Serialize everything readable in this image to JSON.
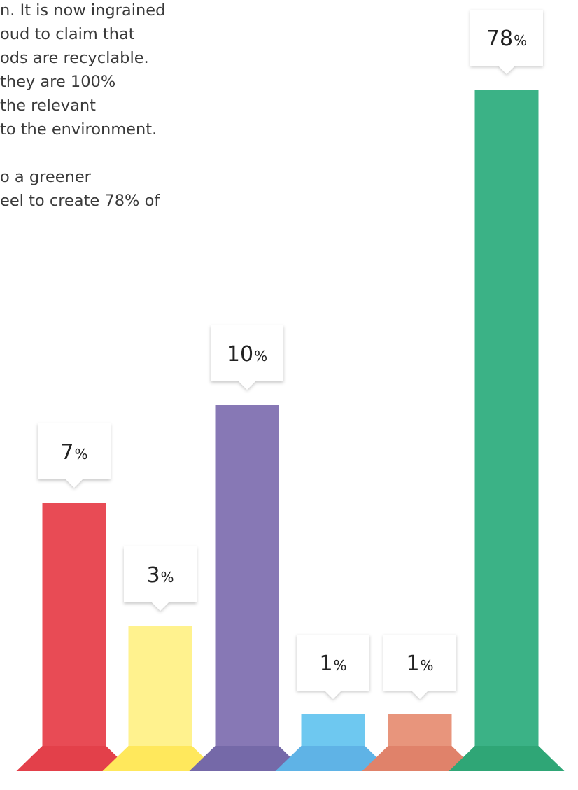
{
  "intro": {
    "lines": [
      "n. It is now ingrained",
      "oud to claim that",
      "ods are recyclable.",
      "they are 100%",
      "the relevant",
      "to the environment.",
      "",
      "o a greener",
      "eel to create 78% of"
    ]
  },
  "chart_data": {
    "type": "bar",
    "values": [
      7,
      3,
      10,
      1,
      1,
      78
    ],
    "labels": [
      "7%",
      "3%",
      "10%",
      "1%",
      "1%",
      "78%"
    ],
    "colors": [
      "#E84B55",
      "#FFF28E",
      "#8778B5",
      "#6EC8F0",
      "#E8957C",
      "#3BB286"
    ],
    "base_colors": [
      "#E3404A",
      "#FFE85C",
      "#7569A8",
      "#5FB3E6",
      "#E0826A",
      "#2FA676"
    ],
    "title": "",
    "xlabel": "",
    "ylabel": "",
    "ylim": [
      0,
      78
    ]
  }
}
